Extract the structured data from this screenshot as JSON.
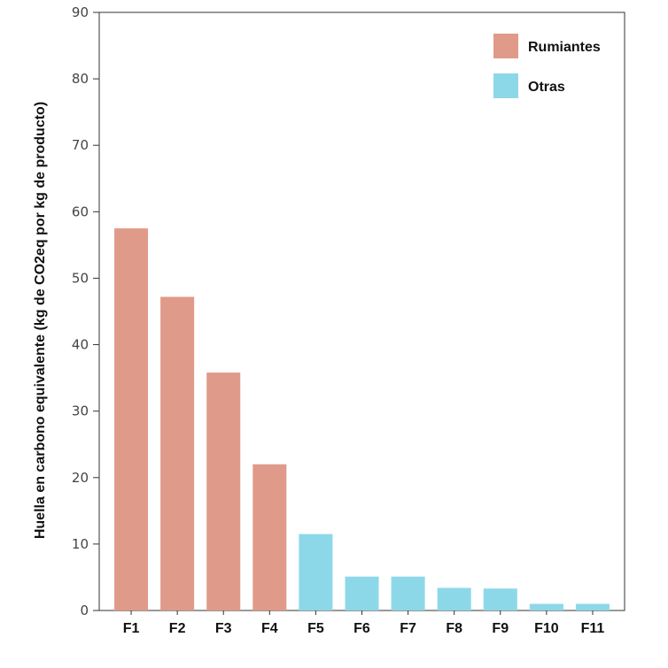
{
  "chart_data": {
    "type": "bar",
    "title": "",
    "xlabel": "",
    "ylabel": "Huella en carbono equivalente (kg de CO2eq por kg de producto)",
    "ylim": [
      0,
      90
    ],
    "yticks": [
      0,
      10,
      20,
      30,
      40,
      50,
      60,
      70,
      80,
      90
    ],
    "grid": false,
    "legend_position": "top-right",
    "categories": [
      "F1",
      "F2",
      "F3",
      "F4",
      "F5",
      "F6",
      "F7",
      "F8",
      "F9",
      "F10",
      "F11"
    ],
    "values": [
      57.5,
      47.2,
      35.8,
      22.0,
      11.5,
      5.1,
      5.1,
      3.4,
      3.3,
      1.0,
      1.0
    ],
    "groups": [
      "Rumiantes",
      "Rumiantes",
      "Rumiantes",
      "Rumiantes",
      "Otras",
      "Otras",
      "Otras",
      "Otras",
      "Otras",
      "Otras",
      "Otras"
    ],
    "series": [
      {
        "name": "Rumiantes",
        "color": "#e09a8a"
      },
      {
        "name": "Otras",
        "color": "#8dd8e8"
      }
    ]
  }
}
